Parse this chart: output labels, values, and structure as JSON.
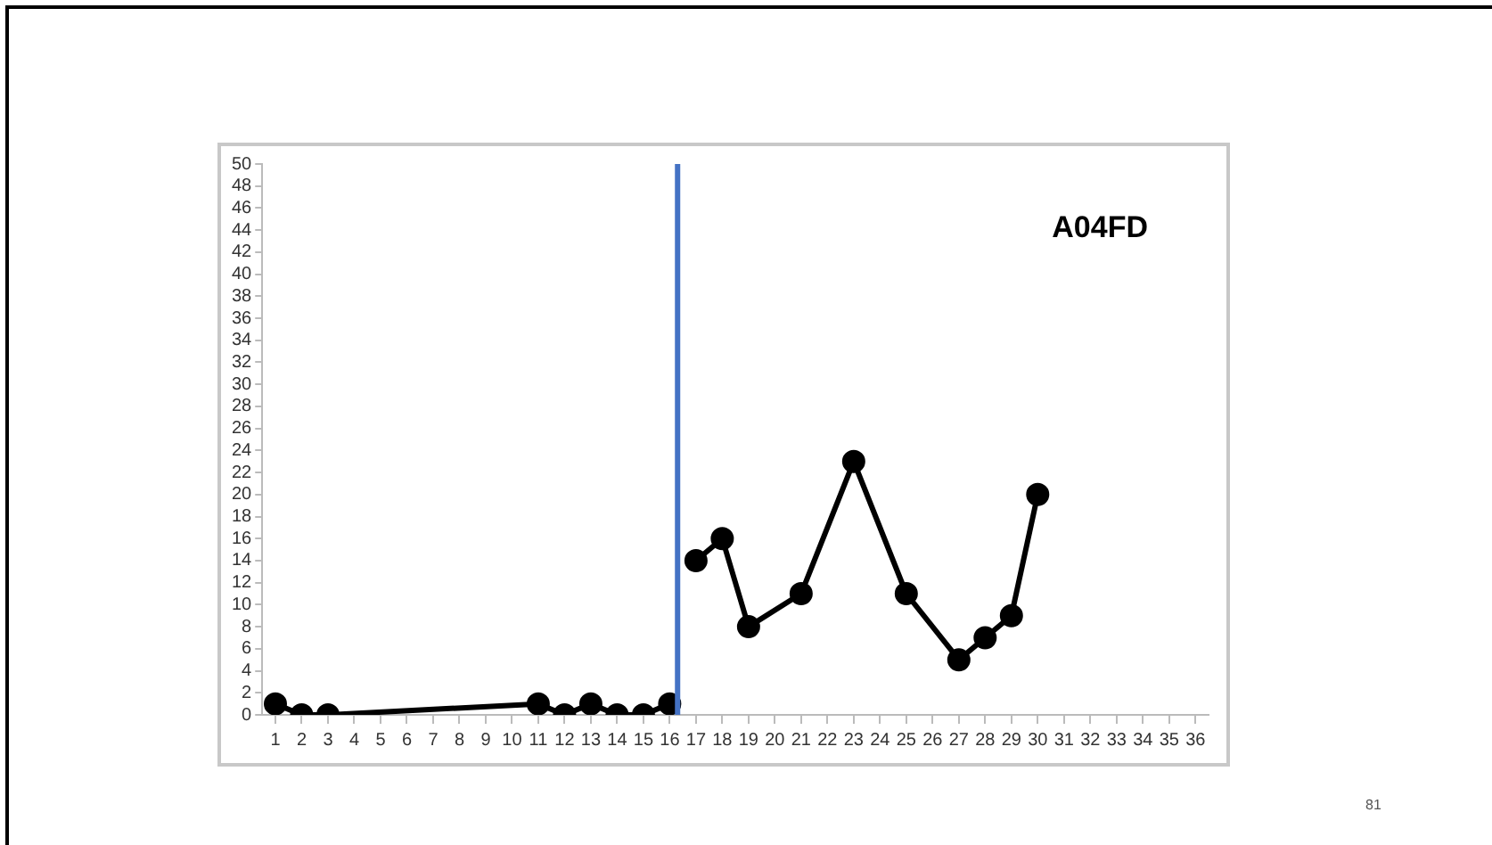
{
  "chart_data": {
    "type": "line",
    "xlim": [
      0.5,
      36.5
    ],
    "xticks": [
      1,
      2,
      3,
      4,
      5,
      6,
      7,
      8,
      9,
      10,
      11,
      12,
      13,
      14,
      15,
      16,
      17,
      18,
      19,
      20,
      21,
      22,
      23,
      24,
      25,
      26,
      27,
      28,
      29,
      30,
      31,
      32,
      33,
      34,
      35,
      36
    ],
    "ylim": [
      0,
      50
    ],
    "yticks": [
      0,
      2,
      4,
      6,
      8,
      10,
      12,
      14,
      16,
      18,
      20,
      22,
      24,
      26,
      28,
      30,
      32,
      34,
      36,
      38,
      40,
      42,
      44,
      46,
      48,
      50
    ],
    "series": [
      {
        "color": "#000000",
        "x": [
          1,
          2,
          3,
          11,
          12,
          13,
          14,
          15,
          16
        ],
        "values": [
          1,
          0,
          0,
          1,
          0,
          1,
          0,
          0,
          1
        ]
      },
      {
        "color": "#000000",
        "x": [
          17,
          18,
          19,
          21,
          23,
          25,
          27,
          28,
          29,
          30
        ],
        "values": [
          14,
          16,
          8,
          11,
          23,
          11,
          5,
          7,
          9,
          20
        ]
      }
    ],
    "ref_lines": [
      {
        "axis": "x",
        "value": 16.3,
        "color": "#4472c4"
      }
    ],
    "marker": "circle",
    "line_style": "solid",
    "grid": false,
    "legend": false,
    "annotations": [
      "A04FD",
      "81"
    ]
  }
}
